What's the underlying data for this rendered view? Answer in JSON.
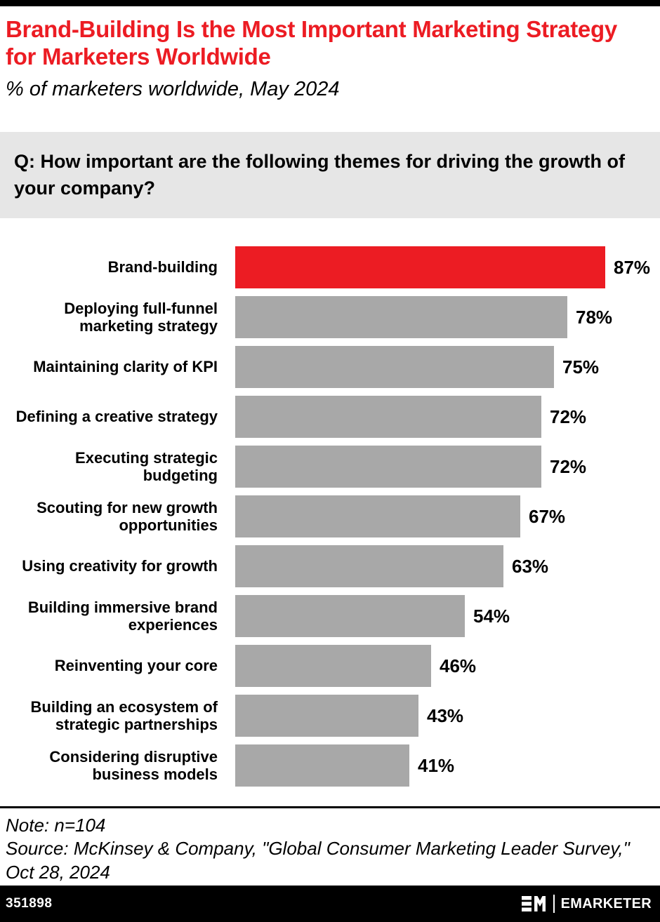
{
  "question": {
    "text": "Q: How important are the following themes for driving the growth of your company?"
  },
  "chart_data": {
    "type": "bar",
    "orientation": "horizontal",
    "title": "Brand-Building Is the Most Important Marketing Strategy for Marketers Worldwide",
    "subtitle": "% of marketers worldwide, May 2024",
    "categories": [
      "Brand-building",
      "Deploying full-funnel marketing strategy",
      "Maintaining clarity of KPI",
      "Defining a creative strategy",
      "Executing strategic budgeting",
      "Scouting for new growth opportunities",
      "Using creativity for growth",
      "Building immersive brand experiences",
      "Reinventing your core",
      "Building an ecosystem of strategic partnerships",
      "Considering disruptive business models"
    ],
    "values": [
      87,
      78,
      75,
      72,
      72,
      67,
      63,
      54,
      46,
      43,
      41
    ],
    "value_suffix": "%",
    "xlim": [
      0,
      100
    ],
    "grid": false,
    "legend": "none",
    "highlight_index": 0,
    "colors": {
      "highlight": "#EC1C23",
      "default": "#A8A8A8"
    }
  },
  "footer": {
    "note": "Note: n=104",
    "source": "Source: McKinsey & Company, \"Global Consumer Marketing Leader Survey,\" Oct 28, 2024",
    "chart_id": "351898",
    "brand": "EMARKETER"
  }
}
